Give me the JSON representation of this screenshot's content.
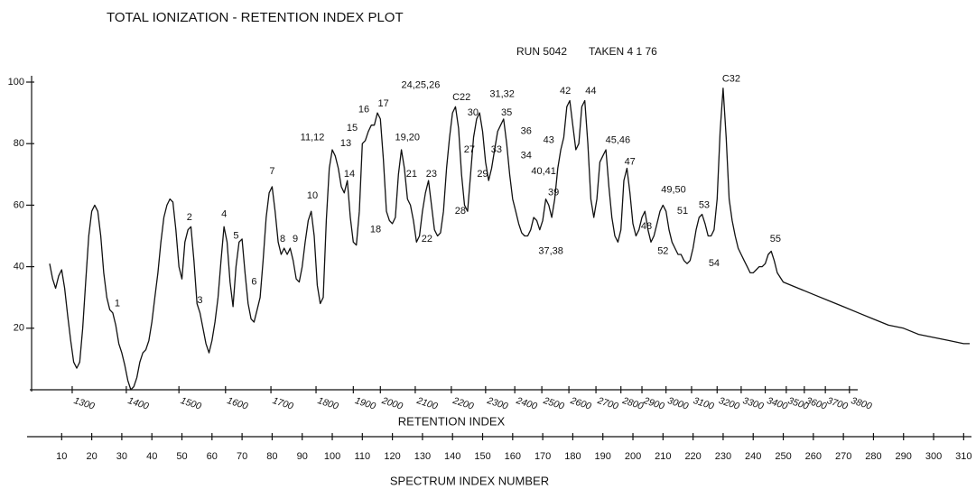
{
  "chart_data": {
    "type": "line",
    "title": "TOTAL IONIZATION - RETENTION INDEX PLOT",
    "subtitle": "RUN 5042",
    "date_note": "TAKEN 4 1 76",
    "xlabel": "SPECTRUM INDEX NUMBER",
    "x2label": "RETENTION INDEX",
    "color": "#111111",
    "xlim": [
      0,
      312
    ],
    "ylim": [
      0,
      100
    ],
    "yticks": [
      20,
      40,
      60,
      80,
      100
    ],
    "xticks": [
      10,
      20,
      30,
      40,
      50,
      60,
      70,
      80,
      90,
      100,
      110,
      120,
      130,
      140,
      150,
      160,
      170,
      180,
      190,
      200,
      210,
      220,
      230,
      240,
      250,
      260,
      270,
      280,
      290,
      300,
      310
    ],
    "retention_index_ticks": [
      {
        "value": 1300,
        "x": 13.5
      },
      {
        "value": 1400,
        "x": 31.5
      },
      {
        "value": 1500,
        "x": 49
      },
      {
        "value": 1600,
        "x": 64.5
      },
      {
        "value": 1700,
        "x": 79.6
      },
      {
        "value": 1800,
        "x": 94.6
      },
      {
        "value": 1900,
        "x": 107
      },
      {
        "value": 2000,
        "x": 116
      },
      {
        "value": 2100,
        "x": 127.6
      },
      {
        "value": 2200,
        "x": 139.6
      },
      {
        "value": 2300,
        "x": 151
      },
      {
        "value": 2400,
        "x": 160.7
      },
      {
        "value": 2500,
        "x": 169.7
      },
      {
        "value": 2600,
        "x": 178.7
      },
      {
        "value": 2700,
        "x": 187.7
      },
      {
        "value": 2800,
        "x": 196
      },
      {
        "value": 2900,
        "x": 203
      },
      {
        "value": 3000,
        "x": 211
      },
      {
        "value": 3100,
        "x": 219.5
      },
      {
        "value": 3200,
        "x": 228
      },
      {
        "value": 3300,
        "x": 236
      },
      {
        "value": 3400,
        "x": 244
      },
      {
        "value": 3500,
        "x": 251
      },
      {
        "value": 3600,
        "x": 257
      },
      {
        "value": 3700,
        "x": 264
      },
      {
        "value": 3800,
        "x": 272
      }
    ],
    "x": [
      6,
      7,
      8,
      9,
      10,
      11,
      12,
      13,
      14,
      15,
      16,
      17,
      18,
      19,
      20,
      21,
      22,
      23,
      24,
      25,
      26,
      27,
      28,
      29,
      30,
      31,
      32,
      33,
      34,
      35,
      36,
      37,
      38,
      39,
      40,
      41,
      42,
      43,
      44,
      45,
      46,
      47,
      48,
      49,
      50,
      51,
      52,
      53,
      54,
      55,
      56,
      57,
      58,
      59,
      60,
      61,
      62,
      63,
      64,
      65,
      66,
      67,
      68,
      69,
      70,
      71,
      72,
      73,
      74,
      75,
      76,
      77,
      78,
      79,
      80,
      81,
      82,
      83,
      84,
      85,
      86,
      87,
      88,
      89,
      90,
      91,
      92,
      93,
      94,
      95,
      96,
      97,
      98,
      99,
      100,
      101,
      102,
      103,
      104,
      105,
      106,
      107,
      108,
      109,
      110,
      111,
      112,
      113,
      114,
      115,
      116,
      117,
      118,
      119,
      120,
      121,
      122,
      123,
      124,
      125,
      126,
      127,
      128,
      129,
      130,
      131,
      132,
      133,
      134,
      135,
      136,
      137,
      138,
      139,
      140,
      141,
      142,
      143,
      144,
      145,
      146,
      147,
      148,
      149,
      150,
      151,
      152,
      153,
      154,
      155,
      156,
      157,
      158,
      159,
      160,
      161,
      162,
      163,
      164,
      165,
      166,
      167,
      168,
      169,
      170,
      171,
      172,
      173,
      174,
      175,
      176,
      177,
      178,
      179,
      180,
      181,
      182,
      183,
      184,
      185,
      186,
      187,
      188,
      189,
      190,
      191,
      192,
      193,
      194,
      195,
      196,
      197,
      198,
      199,
      200,
      201,
      202,
      203,
      204,
      205,
      206,
      207,
      208,
      209,
      210,
      211,
      212,
      213,
      214,
      215,
      216,
      217,
      218,
      219,
      220,
      221,
      222,
      223,
      224,
      225,
      226,
      227,
      228,
      229,
      230,
      231,
      232,
      233,
      234,
      235,
      236,
      237,
      238,
      239,
      240,
      241,
      242,
      243,
      244,
      245,
      246,
      247,
      248,
      250,
      255,
      260,
      265,
      270,
      275,
      280,
      285,
      290,
      295,
      300,
      305,
      310,
      312
    ],
    "values": [
      41,
      36,
      33,
      37,
      39,
      33,
      24,
      16,
      9,
      7,
      9,
      20,
      35,
      50,
      58,
      60,
      58,
      50,
      38,
      30,
      26,
      25,
      21,
      15,
      12,
      8,
      3,
      0,
      1,
      4,
      9,
      12,
      13,
      16,
      22,
      30,
      38,
      48,
      56,
      60,
      62,
      61,
      52,
      40,
      36,
      48,
      52,
      53,
      42,
      28,
      25,
      20,
      15,
      12,
      16,
      22,
      30,
      42,
      53,
      48,
      35,
      27,
      40,
      48,
      49,
      38,
      28,
      23,
      22,
      26,
      30,
      42,
      56,
      64,
      66,
      58,
      48,
      44,
      46,
      44,
      46,
      42,
      36,
      35,
      40,
      48,
      55,
      58,
      50,
      34,
      28,
      30,
      55,
      72,
      78,
      76,
      72,
      66,
      64,
      68,
      56,
      48,
      47,
      58,
      80,
      81,
      84,
      86,
      86,
      90,
      88,
      75,
      58,
      55,
      54,
      56,
      70,
      78,
      72,
      62,
      60,
      55,
      48,
      50,
      58,
      64,
      68,
      60,
      52,
      50,
      51,
      58,
      72,
      82,
      90,
      92,
      85,
      70,
      60,
      58,
      70,
      82,
      88,
      90,
      84,
      74,
      68,
      72,
      78,
      84,
      86,
      88,
      80,
      70,
      62,
      58,
      54,
      51,
      50,
      50,
      52,
      56,
      55,
      52,
      55,
      62,
      60,
      56,
      62,
      72,
      78,
      82,
      92,
      94,
      86,
      78,
      80,
      92,
      94,
      80,
      62,
      56,
      62,
      74,
      76,
      78,
      66,
      56,
      50,
      48,
      52,
      68,
      72,
      64,
      54,
      50,
      52,
      56,
      58,
      52,
      48,
      50,
      54,
      58,
      60,
      58,
      52,
      48,
      46,
      44,
      44,
      42,
      41,
      42,
      46,
      52,
      56,
      57,
      54,
      50,
      50,
      52,
      62,
      84,
      98,
      82,
      62,
      55,
      50,
      46,
      44,
      42,
      40,
      38,
      38,
      39,
      40,
      40,
      41,
      44,
      45,
      42,
      38,
      35,
      33,
      31,
      29,
      27,
      25,
      23,
      21,
      20,
      18,
      17,
      16,
      15,
      15
    ],
    "annotations": [
      {
        "text": "1",
        "x": 28.5,
        "y": 28
      },
      {
        "text": "2",
        "x": 52.5,
        "y": 56
      },
      {
        "text": "3",
        "x": 56,
        "y": 29
      },
      {
        "text": "4",
        "x": 64,
        "y": 57
      },
      {
        "text": "5",
        "x": 68,
        "y": 50
      },
      {
        "text": "6",
        "x": 74,
        "y": 35
      },
      {
        "text": "7",
        "x": 80,
        "y": 71
      },
      {
        "text": "8",
        "x": 83.5,
        "y": 49
      },
      {
        "text": "9",
        "x": 87.7,
        "y": 49
      },
      {
        "text": "10",
        "x": 93.4,
        "y": 63
      },
      {
        "text": "11,12",
        "x": 93.4,
        "y": 82
      },
      {
        "text": "13",
        "x": 104.5,
        "y": 80
      },
      {
        "text": "14",
        "x": 105.7,
        "y": 70
      },
      {
        "text": "15",
        "x": 106.6,
        "y": 85
      },
      {
        "text": "16",
        "x": 110.5,
        "y": 91
      },
      {
        "text": "17",
        "x": 117,
        "y": 93
      },
      {
        "text": "18",
        "x": 114.4,
        "y": 52
      },
      {
        "text": "19,20",
        "x": 125,
        "y": 82
      },
      {
        "text": "21",
        "x": 126.4,
        "y": 70
      },
      {
        "text": "22",
        "x": 131.5,
        "y": 49
      },
      {
        "text": "23",
        "x": 133,
        "y": 70
      },
      {
        "text": "24,25,26",
        "x": 129.4,
        "y": 99
      },
      {
        "text": "C22",
        "x": 143,
        "y": 95
      },
      {
        "text": "27",
        "x": 145.6,
        "y": 78
      },
      {
        "text": "28",
        "x": 142.6,
        "y": 58
      },
      {
        "text": "29",
        "x": 150,
        "y": 70
      },
      {
        "text": "30",
        "x": 146.8,
        "y": 90
      },
      {
        "text": "31,32",
        "x": 156.5,
        "y": 96
      },
      {
        "text": "33",
        "x": 154.6,
        "y": 78
      },
      {
        "text": "34",
        "x": 164.5,
        "y": 76
      },
      {
        "text": "35",
        "x": 158,
        "y": 90
      },
      {
        "text": "36",
        "x": 164.5,
        "y": 84
      },
      {
        "text": "37,38",
        "x": 172.7,
        "y": 45
      },
      {
        "text": "39",
        "x": 173.6,
        "y": 64
      },
      {
        "text": "40,41",
        "x": 170.3,
        "y": 71
      },
      {
        "text": "42",
        "x": 177.5,
        "y": 97
      },
      {
        "text": "43",
        "x": 172,
        "y": 81
      },
      {
        "text": "44",
        "x": 186,
        "y": 97
      },
      {
        "text": "45,46",
        "x": 195,
        "y": 81
      },
      {
        "text": "47",
        "x": 199,
        "y": 74
      },
      {
        "text": "48",
        "x": 204.5,
        "y": 53
      },
      {
        "text": "49,50",
        "x": 213.5,
        "y": 65
      },
      {
        "text": "51",
        "x": 216.5,
        "y": 58
      },
      {
        "text": "52",
        "x": 210,
        "y": 45
      },
      {
        "text": "53",
        "x": 223.7,
        "y": 60
      },
      {
        "text": "54",
        "x": 227,
        "y": 41
      },
      {
        "text": "C32",
        "x": 232.7,
        "y": 101
      },
      {
        "text": "55",
        "x": 247.4,
        "y": 49
      }
    ]
  }
}
